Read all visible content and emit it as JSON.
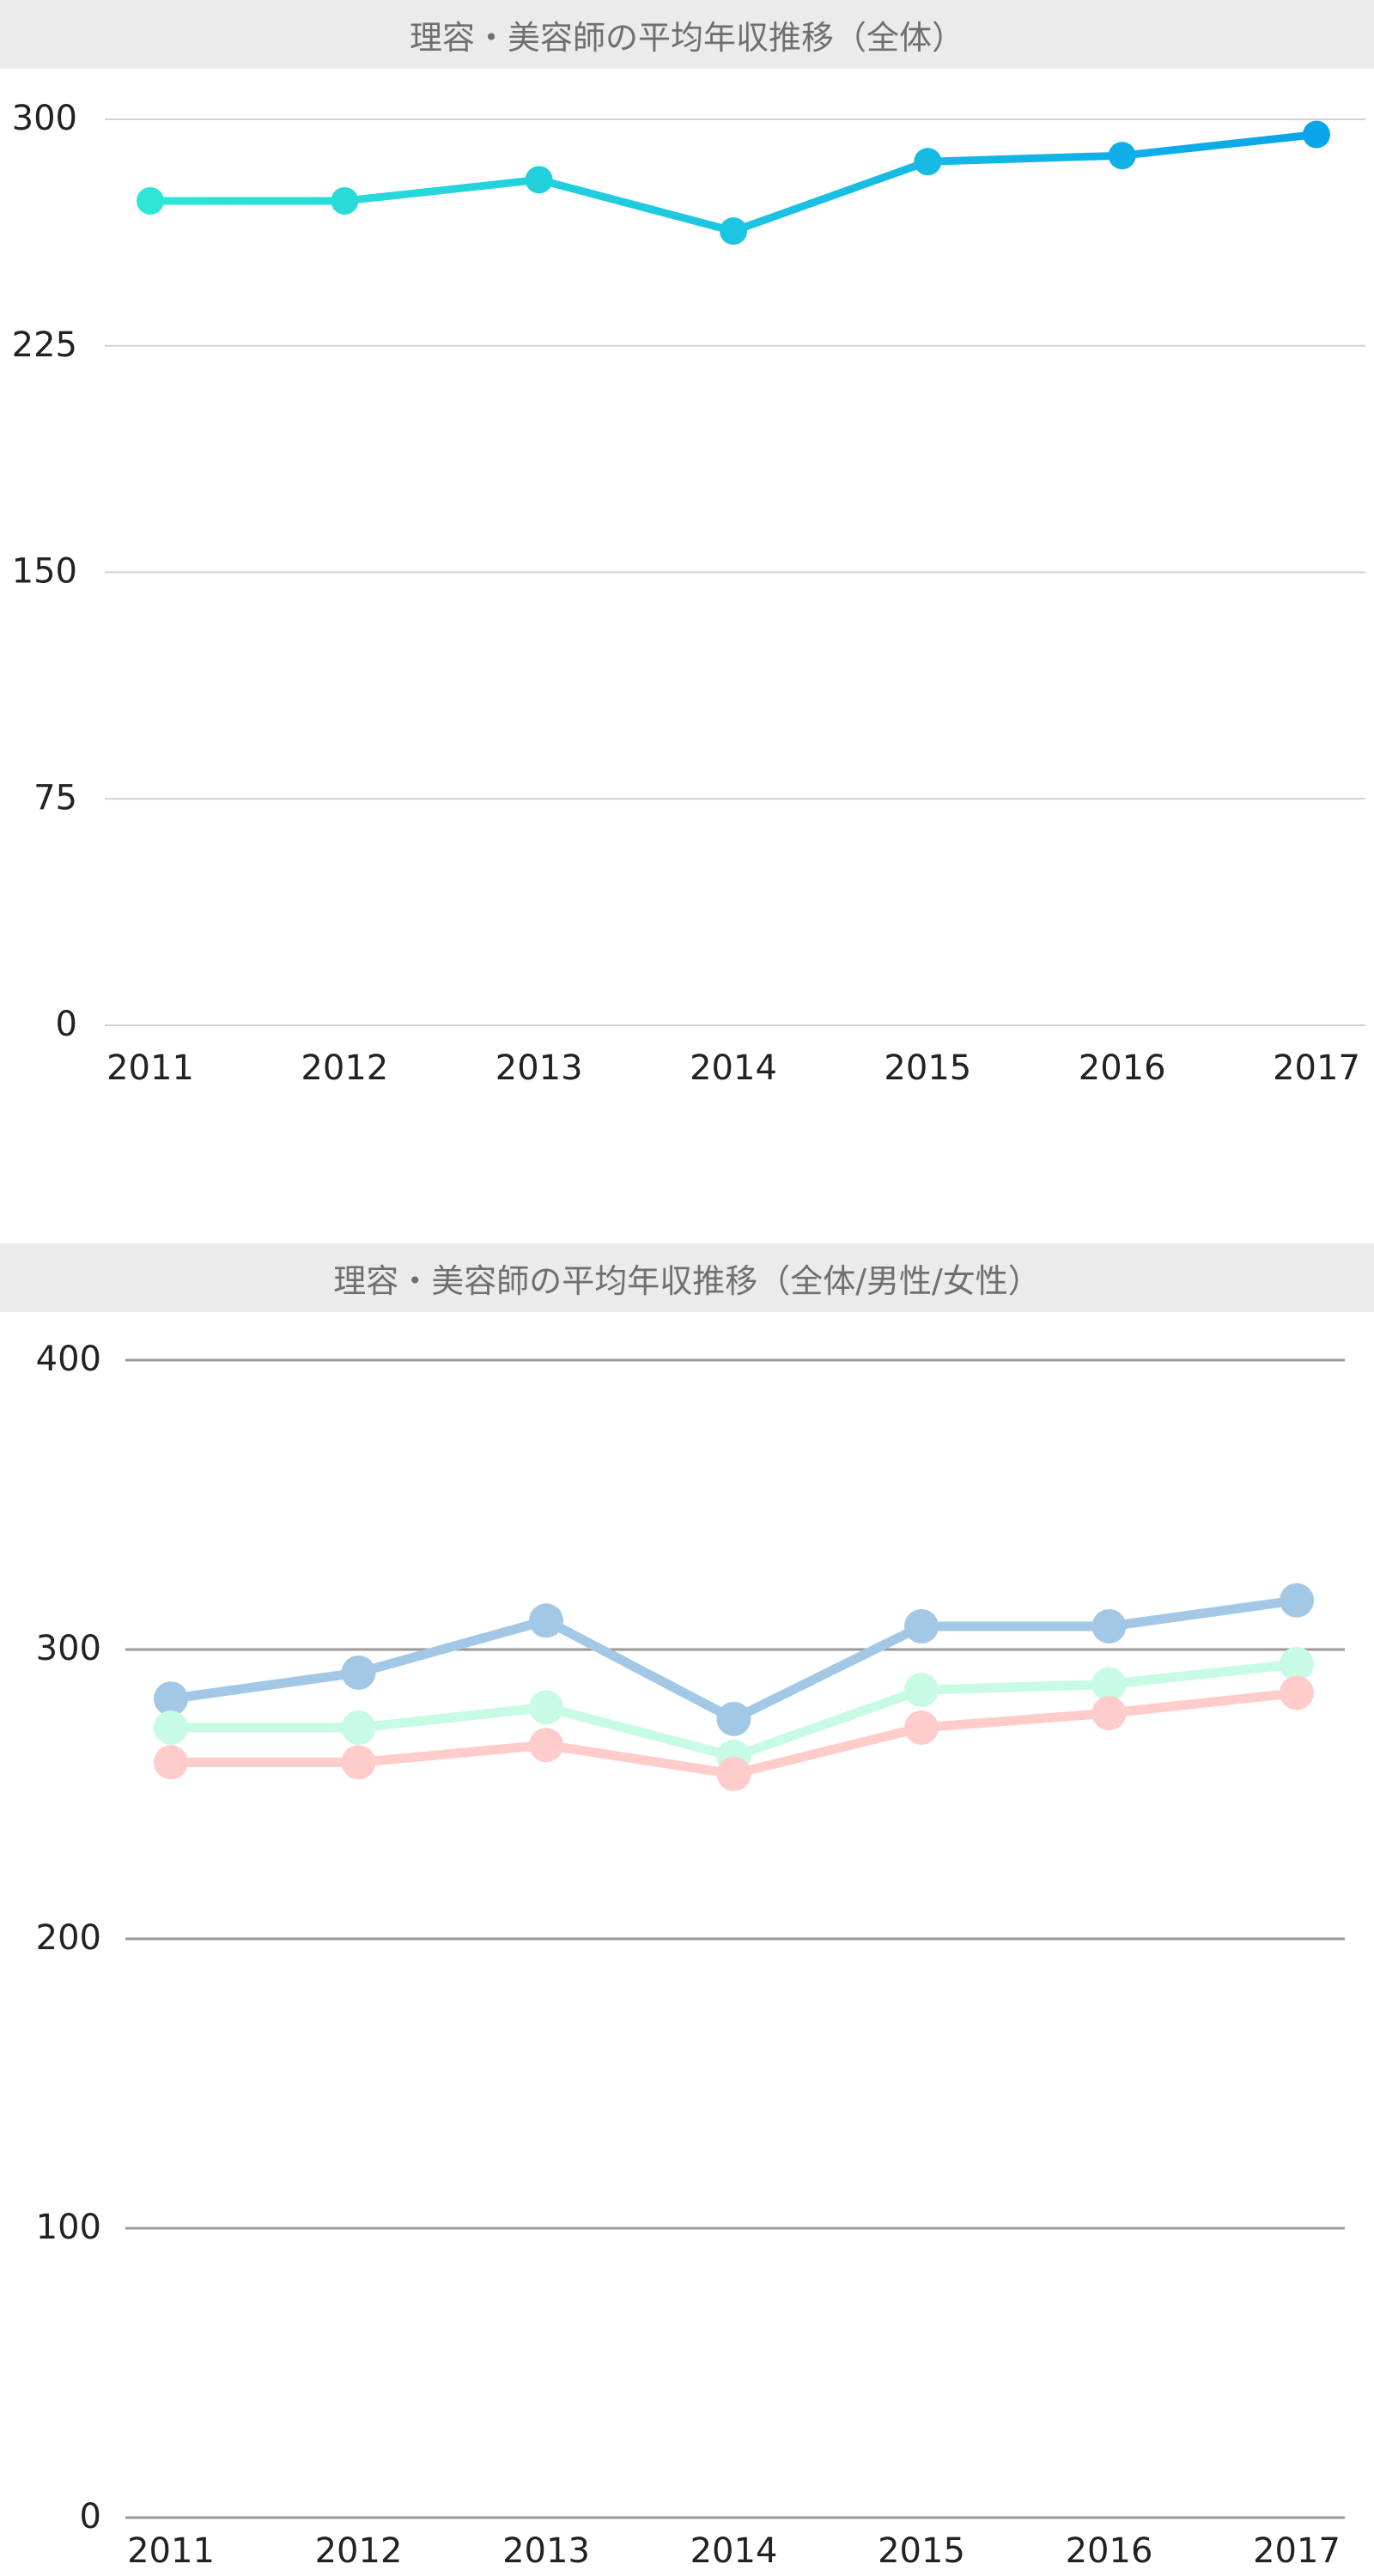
{
  "chart_data": [
    {
      "type": "line",
      "title": "理容・美容師の平均年収推移（全体）",
      "categories": [
        "2011",
        "2012",
        "2013",
        "2014",
        "2015",
        "2016",
        "2017"
      ],
      "series": [
        {
          "values": [
            273,
            273,
            280,
            263,
            286,
            288,
            295
          ],
          "color": "#1fc6e6"
        }
      ],
      "gradient": [
        "#2ee6d6",
        "#0aa4ea"
      ],
      "yticks": [
        "0",
        "75",
        "150",
        "225",
        "300"
      ],
      "ylim": [
        0,
        300
      ],
      "xlabel": "",
      "ylabel": "",
      "grid": true,
      "legend": "none"
    },
    {
      "type": "line",
      "title": "理容・美容師の平均年収推移（全体/男性/女性）",
      "categories": [
        "2011",
        "2012",
        "2013",
        "2014",
        "2015",
        "2016",
        "2017"
      ],
      "series": [
        {
          "values": [
            283,
            292,
            310,
            276,
            308,
            308,
            317
          ],
          "color": "#a3c8e6"
        },
        {
          "values": [
            273,
            273,
            280,
            263,
            286,
            288,
            295
          ],
          "color": "#c8fbe4"
        },
        {
          "values": [
            261,
            261,
            267,
            257,
            273,
            278,
            285
          ],
          "color": "#ffcccc"
        }
      ],
      "yticks": [
        "0",
        "100",
        "200",
        "300",
        "400"
      ],
      "ylim": [
        0,
        400
      ],
      "xlabel": "",
      "ylabel": "",
      "grid": true,
      "legend": "none"
    }
  ]
}
